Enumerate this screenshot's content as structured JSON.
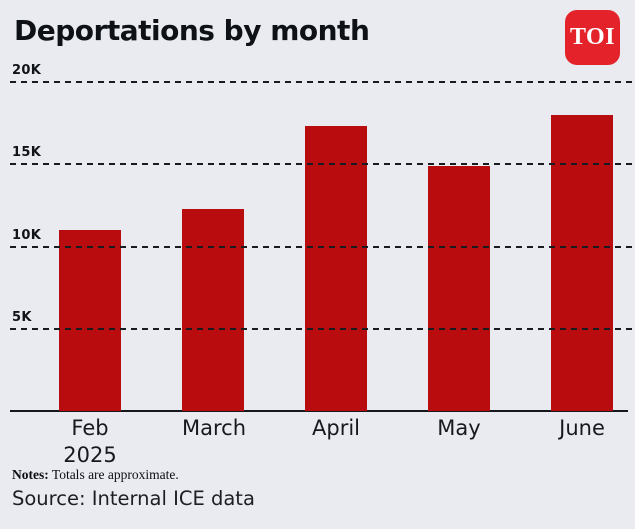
{
  "header": {
    "title": "Deportations by month",
    "logo_text": "TOI"
  },
  "chart_data": {
    "type": "bar",
    "title": "Deportations by month",
    "categories": [
      "Feb 2025",
      "March",
      "April",
      "May",
      "June"
    ],
    "category_lines": [
      [
        "Feb",
        "2025"
      ],
      [
        "March"
      ],
      [
        "April"
      ],
      [
        "May"
      ],
      [
        "June"
      ]
    ],
    "values": [
      11000,
      12300,
      17300,
      14900,
      18000
    ],
    "xlabel": "",
    "ylabel": "",
    "ylim": [
      0,
      20000
    ],
    "yticks": [
      {
        "value": 20000,
        "label": "20K"
      },
      {
        "value": 15000,
        "label": "15K"
      },
      {
        "value": 10000,
        "label": "10K"
      },
      {
        "value": 5000,
        "label": "5K"
      }
    ],
    "grid": "horizontal-dashed",
    "legend": "none",
    "bar_color": "#b80c0e",
    "background_color": "#e9ebf1"
  },
  "footer": {
    "notes_label": "Notes:",
    "notes_text": "Totals are approximate.",
    "source": "Source: Internal ICE data"
  }
}
